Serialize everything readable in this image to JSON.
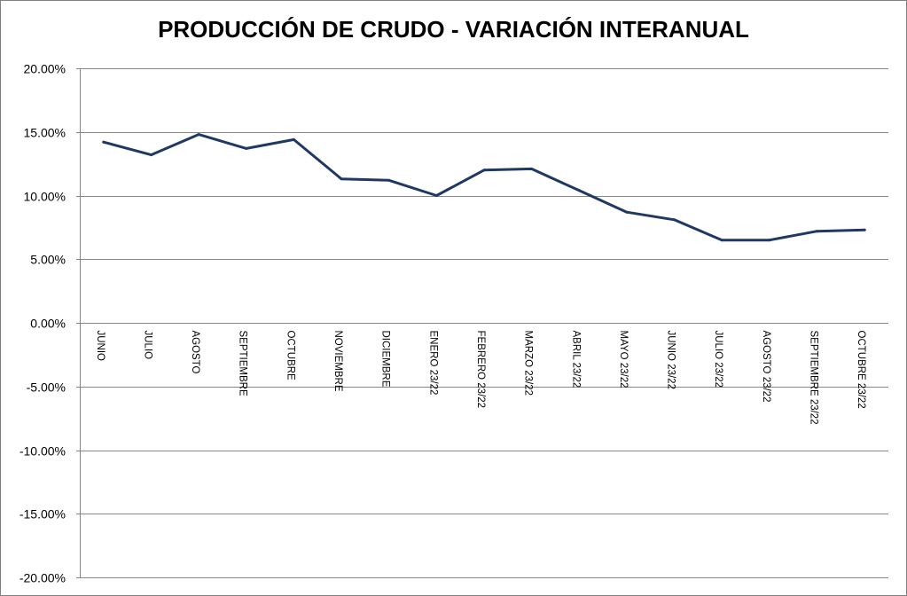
{
  "chart_data": {
    "type": "line",
    "title": "PRODUCCIÓN DE CRUDO - VARIACIÓN INTERANUAL",
    "xlabel": "",
    "ylabel": "",
    "ylim": [
      -0.2,
      0.2
    ],
    "yticks": [
      0.2,
      0.15,
      0.1,
      0.05,
      0.0,
      -0.05,
      -0.1,
      -0.15,
      -0.2
    ],
    "ytick_labels": [
      "20.00%",
      "15.00%",
      "10.00%",
      "5.00%",
      "0.00%",
      "-5.00%",
      "-10.00%",
      "-15.00%",
      "-20.00%"
    ],
    "grid": true,
    "legend": "none",
    "categories": [
      "JUNIO",
      "JULIO",
      "AGOSTO",
      "SEPTIEMBRE",
      "OCTUBRE",
      "NOVIEMBRE",
      "DICIEMBRE",
      "ENERO 23/22",
      "FEBRERO 23/22",
      "MARZO 23/22",
      "ABRIL 23/22",
      "MAYO 23/22",
      "JUNIO 23/22",
      "JULIO 23/22",
      "AGOSTO 23/22",
      "SEPTIEMBRE 23/22",
      "OCTUBRE 23/22"
    ],
    "series": [
      {
        "color": "#1f3864",
        "values": [
          0.142,
          0.132,
          0.148,
          0.137,
          0.144,
          0.113,
          0.112,
          0.1,
          0.12,
          0.121,
          0.104,
          0.087,
          0.081,
          0.065,
          0.065,
          0.072,
          0.073
        ]
      }
    ],
    "colors": {
      "line": "#1f3864",
      "grid": "#868686",
      "axis": "#868686",
      "frame": "#7f7f7f"
    }
  }
}
